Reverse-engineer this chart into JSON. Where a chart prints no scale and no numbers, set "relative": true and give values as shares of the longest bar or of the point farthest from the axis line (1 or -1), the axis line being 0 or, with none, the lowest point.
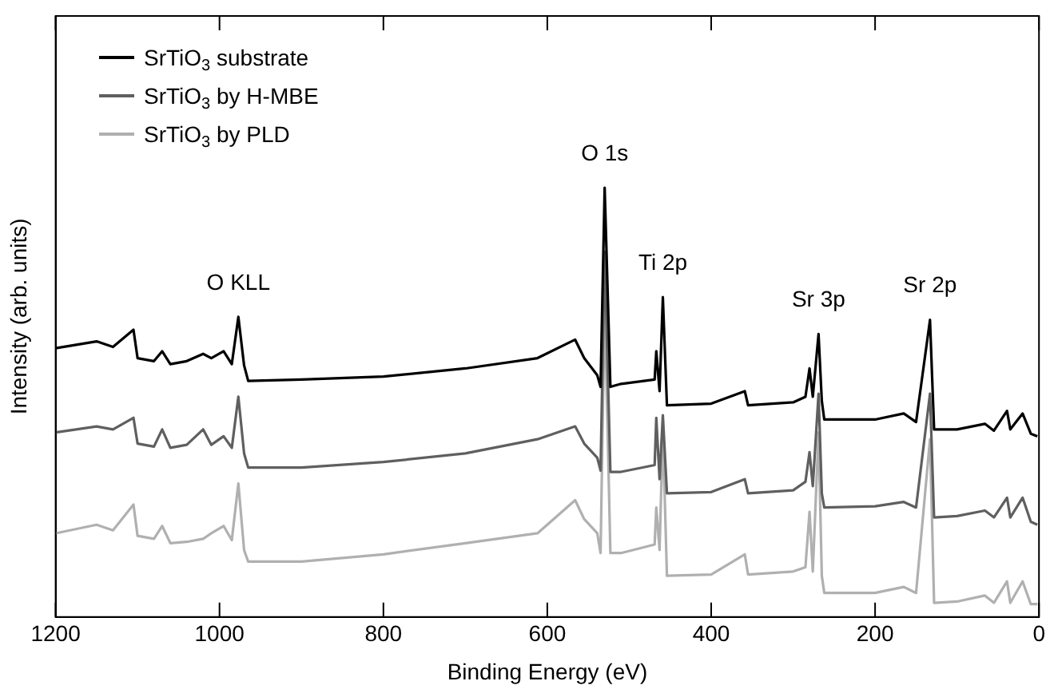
{
  "chart_data": {
    "type": "line",
    "xlabel": "Binding Energy (eV)",
    "ylabel": "Intensity (arb. units)",
    "relative": true,
    "xlim": [
      1200,
      0
    ],
    "xticks": [
      1200,
      1000,
      800,
      600,
      400,
      200,
      0
    ],
    "grid": false,
    "legend": "top left",
    "marker": "none",
    "line_style": "solid",
    "x": [
      1200,
      1150,
      1130,
      1105,
      1100,
      1080,
      1070,
      1060,
      1040,
      1020,
      1010,
      995,
      985,
      977,
      970,
      965,
      900,
      800,
      700,
      612,
      566,
      555,
      539,
      535,
      530,
      523,
      510,
      469,
      467,
      463,
      459,
      454,
      400,
      359,
      355,
      300,
      285,
      280,
      276,
      269,
      265,
      262,
      200,
      165,
      150,
      133,
      128,
      100,
      66,
      55,
      39,
      35,
      20,
      10,
      2
    ],
    "series": [
      {
        "name": "SrTiO$_{3}$ substrate",
        "color": "#000000",
        "values": [
          0.626,
          0.642,
          0.629,
          0.669,
          0.603,
          0.596,
          0.619,
          0.589,
          0.596,
          0.613,
          0.603,
          0.619,
          0.589,
          0.699,
          0.586,
          0.55,
          0.553,
          0.56,
          0.579,
          0.603,
          0.646,
          0.603,
          0.563,
          0.536,
          1.0,
          0.536,
          0.543,
          0.553,
          0.619,
          0.526,
          0.745,
          0.493,
          0.497,
          0.526,
          0.493,
          0.5,
          0.513,
          0.579,
          0.513,
          0.659,
          0.503,
          0.46,
          0.46,
          0.474,
          0.454,
          0.692,
          0.437,
          0.437,
          0.45,
          0.434,
          0.48,
          0.437,
          0.474,
          0.427,
          0.421
        ]
      },
      {
        "name": "SrTiO$_{3}$ by H-MBE",
        "color": "#5f5f5f",
        "values": [
          0.43,
          0.444,
          0.437,
          0.464,
          0.404,
          0.397,
          0.437,
          0.394,
          0.401,
          0.437,
          0.401,
          0.421,
          0.394,
          0.513,
          0.381,
          0.348,
          0.348,
          0.361,
          0.381,
          0.414,
          0.444,
          0.404,
          0.371,
          0.341,
          0.851,
          0.338,
          0.338,
          0.354,
          0.464,
          0.321,
          0.47,
          0.288,
          0.291,
          0.321,
          0.288,
          0.295,
          0.315,
          0.384,
          0.305,
          0.52,
          0.288,
          0.255,
          0.258,
          0.268,
          0.255,
          0.52,
          0.232,
          0.235,
          0.248,
          0.232,
          0.278,
          0.232,
          0.278,
          0.222,
          0.215
        ]
      },
      {
        "name": "SrTiO$_{3}$ by PLD",
        "color": "#b0b0b0",
        "values": [
          0.195,
          0.215,
          0.202,
          0.262,
          0.189,
          0.182,
          0.212,
          0.172,
          0.175,
          0.182,
          0.195,
          0.212,
          0.179,
          0.311,
          0.156,
          0.129,
          0.129,
          0.146,
          0.172,
          0.195,
          0.272,
          0.228,
          0.195,
          0.149,
          0.735,
          0.149,
          0.149,
          0.169,
          0.255,
          0.156,
          0.437,
          0.096,
          0.099,
          0.146,
          0.099,
          0.106,
          0.116,
          0.245,
          0.106,
          0.43,
          0.096,
          0.056,
          0.056,
          0.07,
          0.056,
          0.414,
          0.033,
          0.036,
          0.05,
          0.033,
          0.083,
          0.033,
          0.083,
          0.03,
          0.03
        ]
      }
    ],
    "annotations": [
      {
        "text": "O KLL",
        "x": 977,
        "y": 0.699
      },
      {
        "text": "O 1s",
        "x": 530,
        "y": 1.0
      },
      {
        "text": "Ti 2p",
        "x": 459,
        "y": 0.745
      },
      {
        "text": "Sr 3p",
        "x": 269,
        "y": 0.659
      },
      {
        "text": "Sr 2p",
        "x": 133,
        "y": 0.692
      }
    ]
  }
}
